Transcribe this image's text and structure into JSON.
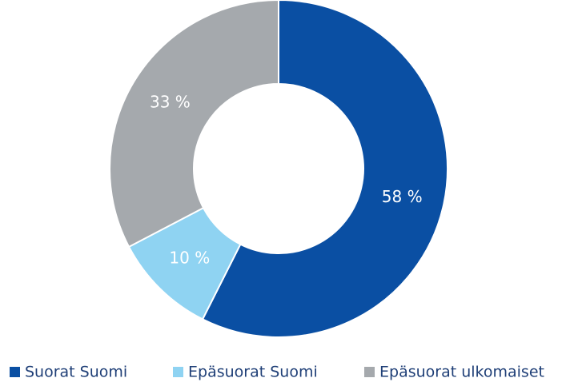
{
  "chart_data": {
    "type": "donut",
    "categories": [
      "Suorat Suomi",
      "Epäsuorat Suomi",
      "Epäsuorat ulkomaiset"
    ],
    "values": [
      58,
      10,
      33
    ],
    "value_labels": [
      "58 %",
      "10 %",
      "33 %"
    ],
    "colors": [
      "#0a4fa3",
      "#8fd3f2",
      "#a5a9ad"
    ],
    "legend": "bottom"
  }
}
